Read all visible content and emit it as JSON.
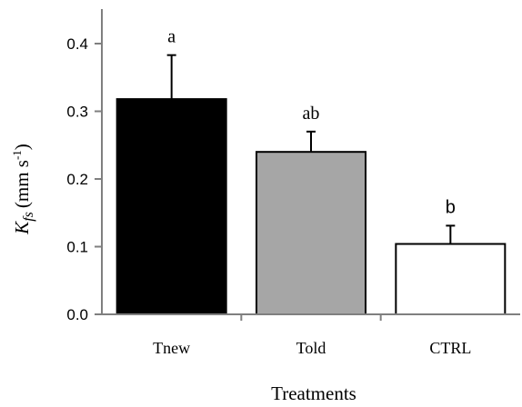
{
  "chart_data": {
    "type": "bar",
    "categories": [
      "Tnew",
      "Told",
      "CTRL"
    ],
    "values": [
      0.318,
      0.24,
      0.104
    ],
    "errors": [
      0.065,
      0.03,
      0.027
    ],
    "significance_letters": [
      "a",
      "ab",
      "b"
    ],
    "bar_colors": [
      "#000000",
      "#a6a6a6",
      "#ffffff"
    ],
    "xlabel": "Treatments",
    "ylabel": {
      "symbol": "K",
      "subscript": "fs",
      "unit": "(mm s",
      "unit_exponent": "-1",
      "unit_close": ")"
    },
    "yticks": [
      "0.0",
      "0.1",
      "0.2",
      "0.3",
      "0.4"
    ],
    "ylim": [
      0,
      0.4
    ],
    "grid": false
  }
}
